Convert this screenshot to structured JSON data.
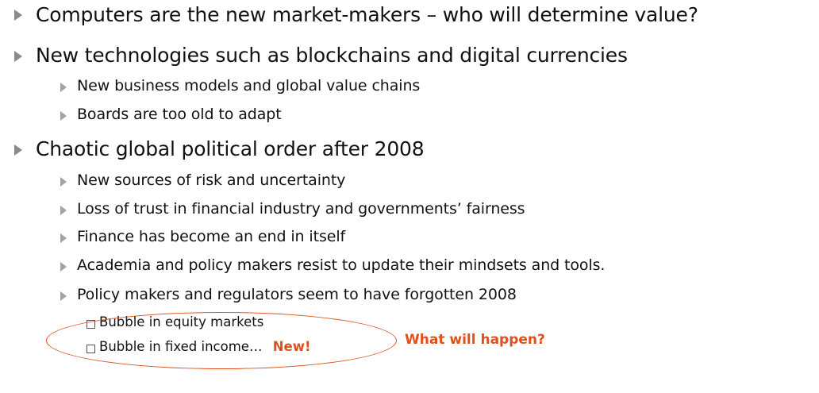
{
  "bullets": [
    {
      "text": "Computers are the new market-makers – who will determine value?"
    },
    {
      "text": "New technologies such as blockchains and digital currencies",
      "children": [
        "New business models and global value chains",
        "Boards are too old to adapt"
      ]
    },
    {
      "text": "Chaotic global political order after 2008",
      "children": [
        "New sources of risk and uncertainty",
        "Loss of trust in financial industry and governments’ fairness",
        "Finance has become an end in itself",
        "Academia and policy makers resist to update their mindsets and tools.",
        "Policy makers and regulators seem to have forgotten 2008"
      ]
    }
  ],
  "sub_items": [
    "Bubble in equity markets",
    "Bubble in fixed income…"
  ],
  "new_tag": "New!",
  "callout": "What will happen?",
  "colors": {
    "accent": "#e0501e",
    "bullet": "#8a8a8a",
    "text": "#111111"
  }
}
